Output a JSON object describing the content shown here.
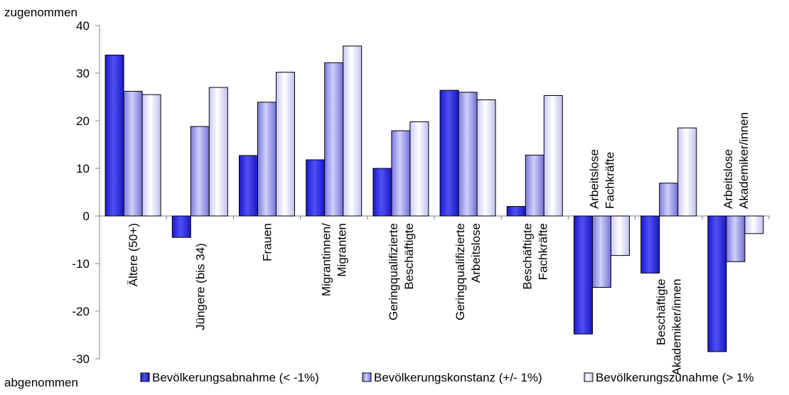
{
  "chart_data": {
    "type": "bar",
    "y_top_label": "zugenommen",
    "y_bottom_label": "abgenommen",
    "ylim": [
      -30,
      40
    ],
    "y_ticks": [
      -30,
      -20,
      -10,
      0,
      10,
      20,
      30,
      40
    ],
    "categories": [
      [
        "Ältere (50+)"
      ],
      [
        "Jüngere (bis 34)"
      ],
      [
        "Frauen"
      ],
      [
        "Migrantinnen/",
        "Migranten"
      ],
      [
        "Geringqualifizierte",
        "Beschäftigte"
      ],
      [
        "Geringqualifizierte",
        "Arbeitslose"
      ],
      [
        "Beschäftigte",
        "Fachkräfte"
      ],
      [
        "Arbeitslose",
        "Fachkräfte"
      ],
      [
        "Beschäftigte",
        "Akademiker/innen"
      ],
      [
        "Arbeitslose",
        "Akademiker/innen"
      ]
    ],
    "series": [
      {
        "name": "Bevölkerungsabnahme (< -1%)",
        "values": [
          33.8,
          -4.5,
          12.7,
          11.8,
          10.0,
          26.4,
          2.0,
          -24.8,
          -12.0,
          -28.5
        ]
      },
      {
        "name": "Bevölkerungskonstanz (+/- 1%)",
        "values": [
          26.2,
          18.8,
          23.9,
          32.2,
          17.9,
          26.0,
          12.8,
          -15.0,
          6.9,
          -9.6
        ]
      },
      {
        "name": "Bevölkerungszunahme (> 1%",
        "values": [
          25.5,
          27.0,
          30.2,
          35.7,
          19.8,
          24.4,
          25.3,
          -8.3,
          18.5,
          -3.7
        ]
      }
    ],
    "colors": [
      "#2a2ae0",
      "#9898ee",
      "#e8e8fb"
    ],
    "legend_position": "bottom",
    "grid": false
  }
}
